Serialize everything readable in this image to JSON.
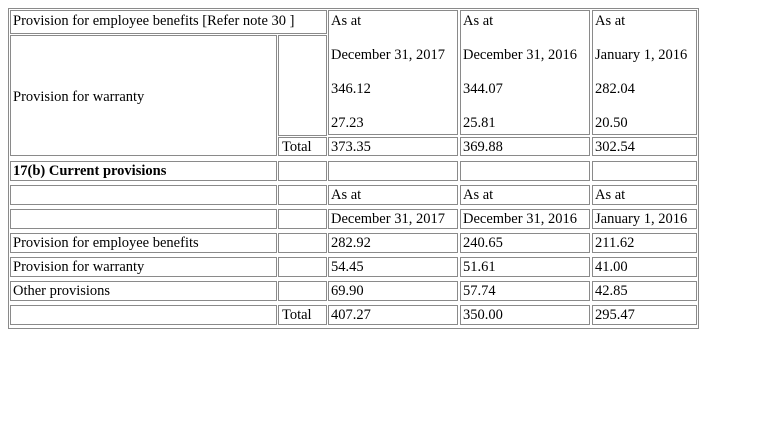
{
  "section_a": {
    "row1_label": "Provision for employee benefits [Refer note 30 ]",
    "warranty_label": "Provision for warranty",
    "total_label": "Total",
    "col_2017": {
      "as_at": "As at",
      "date": "December 31, 2017",
      "v1": "346.12",
      "v2": "27.23",
      "total": "373.35"
    },
    "col_2016": {
      "as_at": "As at",
      "date": "December 31, 2016",
      "v1": "344.07",
      "v2": "25.81",
      "total": "369.88"
    },
    "col_2016_jan": {
      "as_at": "As at",
      "date": "January 1, 2016",
      "v1": "282.04",
      "v2": "20.50",
      "total": "302.54"
    }
  },
  "section_b": {
    "heading": "17(b) Current provisions",
    "header_as_at": [
      "As at",
      "As at",
      "As at"
    ],
    "header_dates": [
      "December 31, 2017",
      "December 31, 2016",
      "January 1, 2016"
    ],
    "rows": [
      {
        "label": "Provision for employee benefits",
        "values": [
          "282.92",
          "240.65",
          "211.62"
        ]
      },
      {
        "label": "Provision for warranty",
        "values": [
          "54.45",
          "51.61",
          "41.00"
        ]
      },
      {
        "label": "Other provisions",
        "values": [
          "69.90",
          "57.74",
          "42.85"
        ]
      }
    ],
    "total_label": "Total",
    "totals": [
      "407.27",
      "350.00",
      "295.47"
    ]
  }
}
